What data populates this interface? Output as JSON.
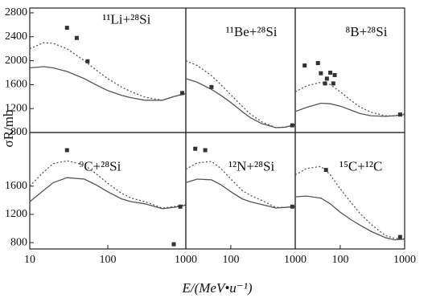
{
  "axes": {
    "x_label": "E/(MeV•u⁻¹)",
    "y_label": "σR/mb"
  },
  "chart_data": [
    {
      "type": "line",
      "title": "¹¹Li+²⁸Si",
      "log_x": true,
      "xlim": [
        10,
        1000
      ],
      "ylim": [
        800,
        2880
      ],
      "yticks": [
        800,
        1200,
        1600,
        2000,
        2400,
        2800
      ],
      "series": [
        {
          "style": "solid",
          "color": "#555555",
          "x": [
            10,
            15,
            20,
            30,
            50,
            70,
            100,
            150,
            200,
            300,
            500,
            700,
            1000
          ],
          "values": [
            1880,
            1900,
            1880,
            1820,
            1700,
            1600,
            1500,
            1420,
            1380,
            1340,
            1340,
            1400,
            1450
          ]
        },
        {
          "style": "dotted",
          "color": "#555555",
          "x": [
            10,
            15,
            20,
            30,
            50,
            70,
            100,
            150,
            200,
            300,
            500,
            700,
            1000
          ],
          "values": [
            2200,
            2300,
            2290,
            2200,
            2000,
            1850,
            1700,
            1560,
            1480,
            1390,
            1340,
            1400,
            1460
          ]
        },
        {
          "style": "markers",
          "color": "#333333",
          "x": [
            30,
            40,
            55,
            900
          ],
          "values": [
            2550,
            2380,
            1990,
            1460
          ]
        }
      ]
    },
    {
      "type": "line",
      "title": "¹¹Be+²⁸Si",
      "log_x": true,
      "xlim": [
        20,
        1000
      ],
      "ylim": [
        800,
        2880
      ],
      "series": [
        {
          "style": "solid",
          "color": "#555555",
          "x": [
            20,
            30,
            50,
            70,
            100,
            150,
            200,
            300,
            500,
            700,
            1000
          ],
          "values": [
            1700,
            1640,
            1520,
            1420,
            1300,
            1150,
            1050,
            950,
            880,
            890,
            930
          ]
        },
        {
          "style": "dotted",
          "color": "#555555",
          "x": [
            20,
            30,
            50,
            70,
            100,
            150,
            200,
            300,
            500,
            700,
            1000
          ],
          "values": [
            2000,
            1920,
            1750,
            1600,
            1430,
            1240,
            1110,
            980,
            880,
            890,
            930
          ]
        },
        {
          "style": "markers",
          "color": "#333333",
          "x": [
            50,
            900
          ],
          "values": [
            1560,
            920
          ]
        }
      ]
    },
    {
      "type": "line",
      "title": "⁸B+²⁸Si",
      "log_x": true,
      "xlim": [
        20,
        1000
      ],
      "ylim": [
        800,
        2880
      ],
      "series": [
        {
          "style": "solid",
          "color": "#555555",
          "x": [
            20,
            30,
            50,
            70,
            100,
            150,
            200,
            300,
            500,
            700,
            1000
          ],
          "values": [
            1150,
            1220,
            1290,
            1280,
            1240,
            1170,
            1120,
            1080,
            1070,
            1080,
            1100
          ]
        },
        {
          "style": "dotted",
          "color": "#555555",
          "x": [
            20,
            30,
            50,
            70,
            100,
            150,
            200,
            300,
            500,
            700,
            1000
          ],
          "values": [
            1480,
            1580,
            1640,
            1600,
            1480,
            1330,
            1230,
            1140,
            1080,
            1080,
            1110
          ]
        },
        {
          "style": "markers",
          "color": "#333333",
          "x": [
            28,
            45,
            50,
            58,
            62,
            70,
            78,
            82,
            850
          ],
          "values": [
            1920,
            1960,
            1790,
            1620,
            1700,
            1800,
            1620,
            1760,
            1100
          ]
        }
      ]
    },
    {
      "type": "line",
      "title": "⁹C+²⁸Si",
      "log_x": true,
      "xlim": [
        10,
        1000
      ],
      "ylim": [
        710,
        2360
      ],
      "xticks": [
        10,
        100,
        1000
      ],
      "yticks": [
        800,
        1200,
        1600
      ],
      "series": [
        {
          "style": "solid",
          "color": "#555555",
          "x": [
            10,
            15,
            20,
            30,
            50,
            70,
            100,
            150,
            200,
            300,
            500,
            700,
            1000
          ],
          "values": [
            1380,
            1540,
            1650,
            1720,
            1700,
            1620,
            1520,
            1420,
            1380,
            1350,
            1280,
            1300,
            1330
          ]
        },
        {
          "style": "dotted",
          "color": "#555555",
          "x": [
            10,
            15,
            20,
            30,
            50,
            70,
            100,
            150,
            200,
            300,
            500,
            700,
            1000
          ],
          "values": [
            1600,
            1800,
            1920,
            1960,
            1900,
            1780,
            1640,
            1500,
            1430,
            1380,
            1290,
            1310,
            1340
          ]
        },
        {
          "style": "markers",
          "color": "#333333",
          "x": [
            30,
            700,
            850
          ],
          "values": [
            2110,
            777,
            1310
          ]
        }
      ]
    },
    {
      "type": "line",
      "title": "¹²N+²⁸Si",
      "log_x": true,
      "xlim": [
        20,
        1000
      ],
      "ylim": [
        710,
        2360
      ],
      "xticks": [
        100,
        1000
      ],
      "series": [
        {
          "style": "solid",
          "color": "#555555",
          "x": [
            20,
            30,
            50,
            70,
            100,
            150,
            200,
            300,
            500,
            700,
            1000
          ],
          "values": [
            1650,
            1700,
            1690,
            1620,
            1520,
            1420,
            1380,
            1340,
            1290,
            1300,
            1310
          ]
        },
        {
          "style": "dotted",
          "color": "#555555",
          "x": [
            20,
            30,
            50,
            70,
            100,
            150,
            200,
            300,
            500,
            700,
            1000
          ],
          "values": [
            1840,
            1930,
            1950,
            1850,
            1700,
            1540,
            1470,
            1400,
            1300,
            1300,
            1310
          ]
        },
        {
          "style": "markers",
          "color": "#333333",
          "x": [
            28,
            40,
            900
          ],
          "values": [
            2130,
            2110,
            1310
          ]
        }
      ]
    },
    {
      "type": "line",
      "title": "¹⁵C+¹²C",
      "log_x": true,
      "xlim": [
        20,
        1000
      ],
      "ylim": [
        710,
        2360
      ],
      "xticks": [
        100,
        1000
      ],
      "series": [
        {
          "style": "solid",
          "color": "#555555",
          "x": [
            20,
            30,
            50,
            70,
            100,
            150,
            200,
            300,
            500,
            700,
            1000
          ],
          "values": [
            1450,
            1460,
            1430,
            1350,
            1230,
            1120,
            1050,
            960,
            870,
            840,
            850
          ]
        },
        {
          "style": "dotted",
          "color": "#555555",
          "x": [
            20,
            30,
            50,
            70,
            100,
            150,
            200,
            300,
            500,
            700,
            1000
          ],
          "values": [
            1760,
            1850,
            1880,
            1760,
            1560,
            1360,
            1220,
            1060,
            900,
            860,
            860
          ]
        },
        {
          "style": "markers",
          "color": "#333333",
          "x": [
            60,
            850
          ],
          "values": [
            1830,
            880
          ]
        }
      ]
    }
  ]
}
